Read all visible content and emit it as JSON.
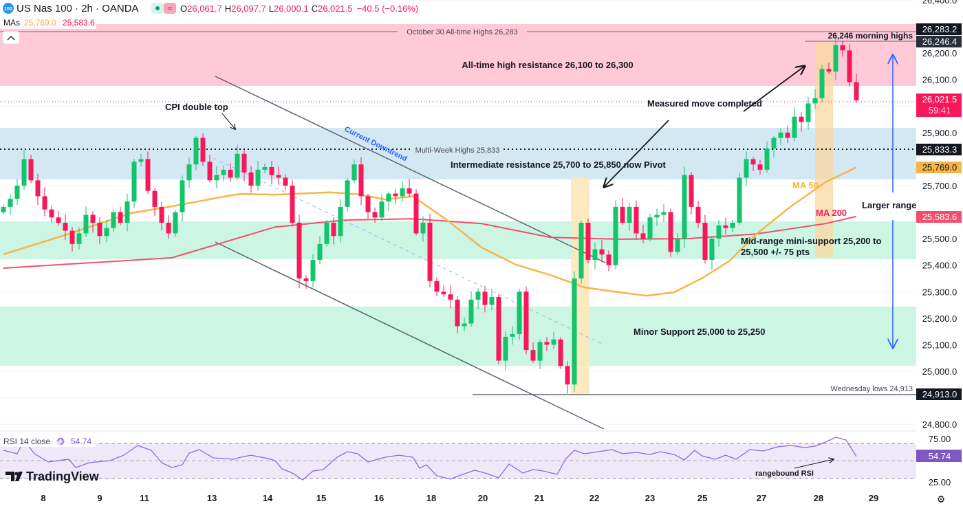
{
  "header": {
    "symbol_badge": "100",
    "title": "US Nas 100 · 2h · OANDA",
    "ohlc": {
      "o_label": "O",
      "o": "26,061.7",
      "h_label": "H",
      "h": "26,097.7",
      "l_label": "L",
      "l": "26,000.1",
      "c_label": "C",
      "c": "26,021.5",
      "change": "−40.5 (−0.16%)"
    },
    "mas_label": "MAs",
    "ma50_value": "25,769.0",
    "ma200_value": "25,583.6"
  },
  "colors": {
    "up": "#12c46b",
    "down": "#f7185a",
    "ma50": "#f7b547",
    "ma200": "#f0506e",
    "rsi": "#8c6ad6",
    "resistance_zone": "#ffc9d8",
    "pivot_zone": "#d4e8f3",
    "support_zone": "#cdf5e4",
    "highlight": "#fde6b6"
  },
  "annotations": {
    "ath_line": "October 30 All-time Highs 26,283",
    "morning_highs": "26,246 morning highs",
    "ath_resistance": "All-time high resistance 26,100 to 26,300",
    "cpi": "CPI double top",
    "measured_move": "Measured move completed",
    "multi_week": "Multi-Week Highs 25,833",
    "downtrend": "Current Downtrend",
    "intermediate": "Intermediate resistance 25,700 to 25,850 now Pivot",
    "ma50": "MA 50",
    "ma200": "MA 200",
    "larger_range": "Larger range",
    "mid_range_1": "Mid-range mini-support 25,200 to",
    "mid_range_2": "25,500 +/- 75 pts",
    "minor_support": "Minor Support 25,000 to 25,250",
    "wednesday_lows": "Wednesday lows 24,913",
    "rangebound_rsi": "rangebound RSI"
  },
  "price_axis": {
    "ticks": [
      "26,400.0",
      "26,200.0",
      "26,100.0",
      "25,900.0",
      "25,700.0",
      "25,500.0",
      "25,400.0",
      "25,300.0",
      "25,200.0",
      "25,100.0",
      "25,000.0",
      "24,800.0"
    ],
    "tags": {
      "ath": "26,283.2",
      "morning": "26,246.4",
      "last": "26,021.5",
      "countdown": "59:41",
      "multi_week": "25,833.3",
      "ma50": "25,769.0",
      "ma200": "25,583.6",
      "wed_low": "24,913.0"
    }
  },
  "rsi": {
    "label": "RSI 14 close",
    "value": "54.74",
    "ticks": [
      "75.00",
      "25.00"
    ]
  },
  "time_axis": [
    "8",
    "9",
    "11",
    "13",
    "14",
    "15",
    "16",
    "18",
    "20",
    "21",
    "22",
    "23",
    "25",
    "27",
    "28",
    "29"
  ],
  "logo": "TradingView",
  "chart_data": {
    "type": "candlestick",
    "title": "US Nas 100 · 2h · OANDA",
    "ylim": [
      24760,
      26410
    ],
    "closes": [
      25620,
      25650,
      25700,
      25800,
      25720,
      25660,
      25610,
      25580,
      25560,
      25530,
      25480,
      25520,
      25590,
      25560,
      25510,
      25540,
      25600,
      25560,
      25640,
      25790,
      25800,
      25680,
      25620,
      25560,
      25520,
      25600,
      25720,
      25780,
      25880,
      25790,
      25720,
      25740,
      25760,
      25730,
      25820,
      25750,
      25700,
      25760,
      25770,
      25740,
      25730,
      25700,
      25560,
      25350,
      25340,
      25420,
      25480,
      25560,
      25510,
      25620,
      25720,
      25780,
      25660,
      25600,
      25580,
      25640,
      25670,
      25660,
      25690,
      25670,
      25520,
      25560,
      25340,
      25300,
      25290,
      25270,
      25170,
      25180,
      25270,
      25300,
      25250,
      25280,
      25040,
      25130,
      25140,
      25300,
      25080,
      25040,
      25110,
      25100,
      25120,
      25020,
      24950,
      25350,
      25560,
      25420,
      25460,
      25440,
      25400,
      25620,
      25560,
      25620,
      25520,
      25500,
      25580,
      25590,
      25600,
      25450,
      25500,
      25740,
      25620,
      25560,
      25420,
      25500,
      25550,
      25540,
      25560,
      25730,
      25800,
      25780,
      25760,
      25840,
      25880,
      25900,
      25880,
      25960,
      25940,
      26010,
      26030,
      26140,
      26130,
      26230,
      26210,
      26090,
      26021.5
    ],
    "ma50": [
      [
        0,
        25441
      ],
      [
        9.5,
        25518
      ],
      [
        18.5,
        25596
      ],
      [
        24.5,
        25622
      ],
      [
        32.5,
        25661
      ],
      [
        34.5,
        25669
      ],
      [
        39.5,
        25666
      ],
      [
        47.5,
        25675
      ],
      [
        51.5,
        25668
      ],
      [
        55.5,
        25648
      ],
      [
        59.5,
        25660
      ],
      [
        64.5,
        25570
      ],
      [
        69.5,
        25467
      ],
      [
        74.5,
        25402
      ],
      [
        79.5,
        25363
      ],
      [
        84.5,
        25316
      ],
      [
        89.5,
        25298
      ],
      [
        93.5,
        25285
      ],
      [
        97.5,
        25298
      ],
      [
        101.5,
        25350
      ],
      [
        105.5,
        25415
      ],
      [
        109.5,
        25518
      ],
      [
        114.5,
        25622
      ],
      [
        119.5,
        25713
      ],
      [
        124,
        25769
      ]
    ],
    "ma200": [
      [
        0,
        25389
      ],
      [
        24.5,
        25428
      ],
      [
        39.5,
        25544
      ],
      [
        49.5,
        25570
      ],
      [
        59.5,
        25575
      ],
      [
        69.5,
        25557
      ],
      [
        79.5,
        25505
      ],
      [
        89.5,
        25498
      ],
      [
        99.5,
        25500
      ],
      [
        109.5,
        25518
      ],
      [
        119.5,
        25557
      ],
      [
        124,
        25583.6
      ]
    ],
    "rsi": [
      [
        0,
        61.9
      ],
      [
        2,
        57.9
      ],
      [
        3,
        73.8
      ],
      [
        4.5,
        57.9
      ],
      [
        6.5,
        48.4
      ],
      [
        9.5,
        51.6
      ],
      [
        10.5,
        42
      ],
      [
        12.5,
        47.6
      ],
      [
        15.5,
        50
      ],
      [
        17.5,
        56.3
      ],
      [
        19.5,
        67.5
      ],
      [
        21.5,
        61.9
      ],
      [
        23,
        47.6
      ],
      [
        24.5,
        42
      ],
      [
        26,
        45.2
      ],
      [
        27,
        58.7
      ],
      [
        28.5,
        62.7
      ],
      [
        30.5,
        53.2
      ],
      [
        33.5,
        51.6
      ],
      [
        34.5,
        54
      ],
      [
        36,
        56.3
      ],
      [
        38.5,
        52.4
      ],
      [
        39.5,
        50
      ],
      [
        40.5,
        40.5
      ],
      [
        42,
        35.7
      ],
      [
        43.5,
        27.8
      ],
      [
        45,
        38
      ],
      [
        46.5,
        39.7
      ],
      [
        48.5,
        54
      ],
      [
        50,
        60.3
      ],
      [
        51.5,
        57.9
      ],
      [
        53,
        48.4
      ],
      [
        55.5,
        54
      ],
      [
        57.5,
        56.3
      ],
      [
        59.5,
        54
      ],
      [
        60.5,
        41.3
      ],
      [
        61.5,
        45.2
      ],
      [
        63,
        32.5
      ],
      [
        65,
        28.6
      ],
      [
        66.5,
        33.3
      ],
      [
        68.5,
        38.9
      ],
      [
        70,
        35.7
      ],
      [
        72,
        30.2
      ],
      [
        73.5,
        46
      ],
      [
        75.5,
        35.7
      ],
      [
        77,
        39.7
      ],
      [
        78.5,
        38
      ],
      [
        80.5,
        34.1
      ],
      [
        81.7,
        51.6
      ],
      [
        83,
        61.9
      ],
      [
        84.5,
        57.9
      ],
      [
        86.5,
        60.3
      ],
      [
        88.5,
        62.7
      ],
      [
        90,
        57.9
      ],
      [
        92,
        59.5
      ],
      [
        94,
        57.1
      ],
      [
        95.5,
        60.3
      ],
      [
        97.5,
        57.1
      ],
      [
        99,
        50.8
      ],
      [
        100.5,
        61.9
      ],
      [
        101.5,
        55.6
      ],
      [
        103.5,
        51.6
      ],
      [
        105,
        56.3
      ],
      [
        106.5,
        51.6
      ],
      [
        108.5,
        62.7
      ],
      [
        110.5,
        61.1
      ],
      [
        112.5,
        65.9
      ],
      [
        114.5,
        67.5
      ],
      [
        116.5,
        65.1
      ],
      [
        118,
        66.7
      ],
      [
        119.5,
        71.4
      ],
      [
        121,
        77
      ],
      [
        122.5,
        73.8
      ],
      [
        124,
        54.74
      ]
    ]
  }
}
